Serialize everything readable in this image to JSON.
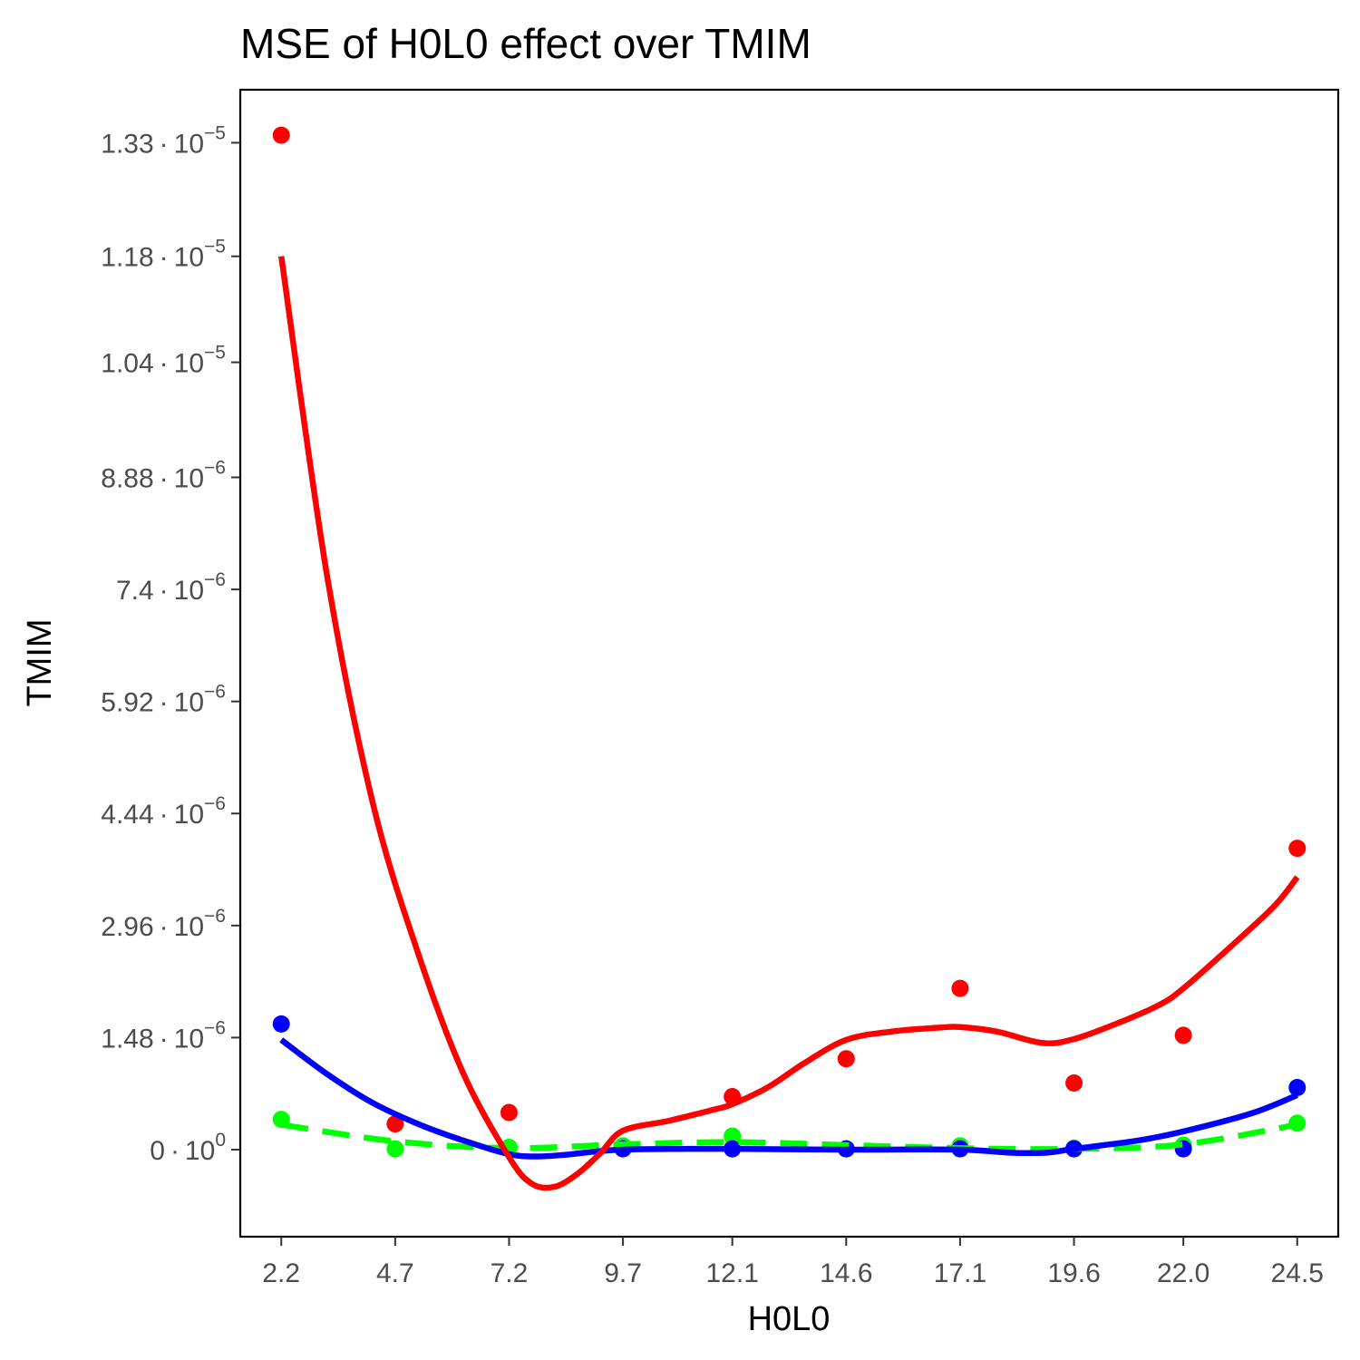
{
  "chart_data": {
    "type": "scatter",
    "title": "MSE of H0L0 effect over  TMIM",
    "xlabel": "H0L0",
    "ylabel": "TMIM",
    "x": [
      2.2,
      4.7,
      7.2,
      9.7,
      12.1,
      14.6,
      17.1,
      19.6,
      22.0,
      24.5
    ],
    "x_tick_labels": [
      "2.2",
      "4.7",
      "7.2",
      "9.7",
      "12.1",
      "14.6",
      "17.1",
      "19.6",
      "22.0",
      "24.5"
    ],
    "y_ticks": [
      {
        "mantissa": "1.33",
        "exponent": "−5",
        "value": 1.33e-05
      },
      {
        "mantissa": "1.18",
        "exponent": "−5",
        "value": 1.18e-05
      },
      {
        "mantissa": "1.04",
        "exponent": "−5",
        "value": 1.04e-05
      },
      {
        "mantissa": "8.88",
        "exponent": "−6",
        "value": 8.88e-06
      },
      {
        "mantissa": "7.4",
        "exponent": "−6",
        "value": 7.4e-06
      },
      {
        "mantissa": "5.92",
        "exponent": "−6",
        "value": 5.92e-06
      },
      {
        "mantissa": "4.44",
        "exponent": "−6",
        "value": 4.44e-06
      },
      {
        "mantissa": "2.96",
        "exponent": "−6",
        "value": 2.96e-06
      },
      {
        "mantissa": "1.48",
        "exponent": "−6",
        "value": 1.48e-06
      },
      {
        "mantissa": "0",
        "exponent": "0",
        "value": 0
      }
    ],
    "y_tick_separator": "·",
    "y_tick_base": "10",
    "ylim": [
      -1.15e-06,
      1.4e-05
    ],
    "xlim": [
      1.3,
      25.4
    ],
    "grid": false,
    "legend": "none",
    "series": [
      {
        "color": "#ff0000",
        "line_style": "solid",
        "values": [
          1.34e-05,
          3.4e-07,
          4.9e-07,
          null,
          7e-07,
          1.2e-06,
          2.13e-06,
          8.8e-07,
          1.51e-06,
          3.98e-06
        ],
        "smooth": [
          [
            2.2,
            1.18e-05
          ],
          [
            3.2,
            7.6e-06
          ],
          [
            4.2,
            4.6e-06
          ],
          [
            5.2,
            2.6e-06
          ],
          [
            6.2,
            1e-06
          ],
          [
            7.2,
            -1e-07
          ],
          [
            7.7,
            -4.5e-07
          ],
          [
            8.2,
            -4.9e-07
          ],
          [
            8.7,
            -3.2e-07
          ],
          [
            9.2,
            -5e-08
          ],
          [
            9.7,
            2.5e-07
          ],
          [
            10.7,
            3.8e-07
          ],
          [
            11.7,
            5.3e-07
          ],
          [
            12.1,
            6e-07
          ],
          [
            12.9,
            8.3e-07
          ],
          [
            13.7,
            1.15e-06
          ],
          [
            14.6,
            1.45e-06
          ],
          [
            15.6,
            1.56e-06
          ],
          [
            16.6,
            1.61e-06
          ],
          [
            17.1,
            1.62e-06
          ],
          [
            17.9,
            1.56e-06
          ],
          [
            18.9,
            1.41e-06
          ],
          [
            19.6,
            1.46e-06
          ],
          [
            20.6,
            1.68e-06
          ],
          [
            21.5,
            1.92e-06
          ],
          [
            22.0,
            2.13e-06
          ],
          [
            23.0,
            2.66e-06
          ],
          [
            24.0,
            3.22e-06
          ],
          [
            24.5,
            3.6e-06
          ]
        ]
      },
      {
        "color": "#0000ff",
        "line_style": "solid",
        "values": [
          1.66e-06,
          null,
          null,
          1e-08,
          1e-08,
          1e-08,
          1e-08,
          1e-08,
          1e-08,
          8.2e-07
        ],
        "smooth": [
          [
            2.2,
            1.45e-06
          ],
          [
            3.2,
            1e-06
          ],
          [
            4.2,
            6.2e-07
          ],
          [
            5.2,
            3.4e-07
          ],
          [
            6.2,
            1.2e-07
          ],
          [
            7.2,
            -6e-08
          ],
          [
            7.8,
            -9e-08
          ],
          [
            8.4,
            -7e-08
          ],
          [
            9.7,
            0.0
          ],
          [
            12.1,
            1e-08
          ],
          [
            14.6,
            0.0
          ],
          [
            17.1,
            0.0
          ],
          [
            18.2,
            -4e-08
          ],
          [
            19.0,
            -4e-08
          ],
          [
            19.6,
            1e-08
          ],
          [
            21.0,
            1.2e-07
          ],
          [
            22.0,
            2.4e-07
          ],
          [
            23.5,
            4.8e-07
          ],
          [
            24.5,
            7.2e-07
          ]
        ]
      },
      {
        "color": "#00ff00",
        "line_style": "dashed",
        "values": [
          4e-07,
          1e-08,
          3e-08,
          5e-08,
          1.8e-07,
          1e-08,
          5e-08,
          2e-08,
          6e-08,
          3.5e-07
        ],
        "smooth": [
          [
            2.2,
            3.3e-07
          ],
          [
            4.7,
            1.1e-07
          ],
          [
            7.2,
            2e-08
          ],
          [
            9.7,
            7e-08
          ],
          [
            12.1,
            1e-07
          ],
          [
            14.6,
            6e-08
          ],
          [
            17.1,
            2e-08
          ],
          [
            19.6,
            1e-08
          ],
          [
            22.0,
            7e-08
          ],
          [
            24.5,
            3.3e-07
          ]
        ]
      }
    ]
  }
}
